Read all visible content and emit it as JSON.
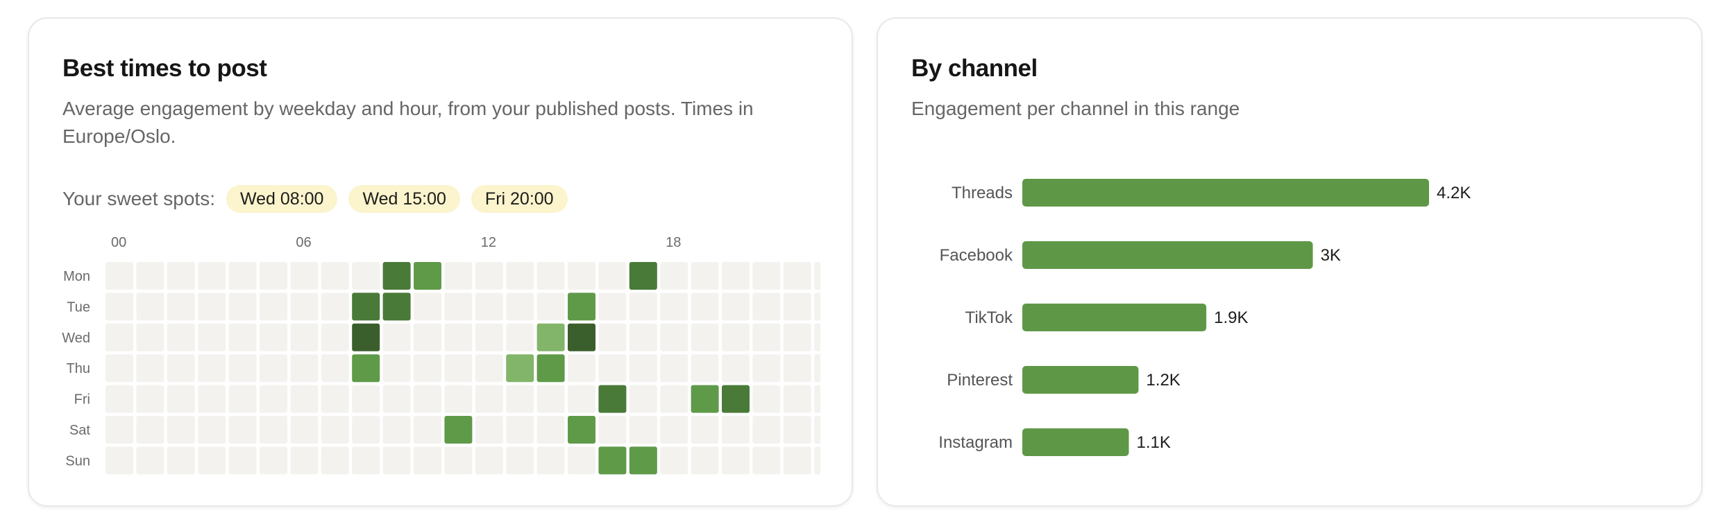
{
  "heatmap_card": {
    "title": "Best times to post",
    "subtitle": "Average engagement by weekday and hour, from your published posts. Times in Europe/Oslo.",
    "sweet_spots_label": "Your sweet spots:",
    "sweet_spots": [
      "Wed 08:00",
      "Wed 15:00",
      "Fri 20:00"
    ]
  },
  "channel_card": {
    "title": "By channel",
    "subtitle": "Engagement per channel in this range"
  },
  "colors": {
    "empty_cell": "#f3f2ef",
    "bar": "#5e9847",
    "chip_bg": "#fbf4cc"
  },
  "chart_data": [
    {
      "type": "heatmap",
      "days": [
        "Mon",
        "Tue",
        "Wed",
        "Thu",
        "Fri",
        "Sat",
        "Sun"
      ],
      "hours": [
        "00",
        "01",
        "02",
        "03",
        "04",
        "05",
        "06",
        "07",
        "08",
        "09",
        "10",
        "11",
        "12",
        "13",
        "14",
        "15",
        "16",
        "17",
        "18",
        "19",
        "20",
        "21",
        "22",
        "23"
      ],
      "x_tick_labels": [
        "00",
        "06",
        "12",
        "18"
      ],
      "cells": [
        {
          "day": "Mon",
          "hour": 9,
          "level": 3
        },
        {
          "day": "Mon",
          "hour": 10,
          "level": 2
        },
        {
          "day": "Mon",
          "hour": 17,
          "level": 3
        },
        {
          "day": "Tue",
          "hour": 8,
          "level": 3
        },
        {
          "day": "Tue",
          "hour": 9,
          "level": 3
        },
        {
          "day": "Tue",
          "hour": 15,
          "level": 2
        },
        {
          "day": "Wed",
          "hour": 8,
          "level": 4
        },
        {
          "day": "Wed",
          "hour": 14,
          "level": 1
        },
        {
          "day": "Wed",
          "hour": 15,
          "level": 4
        },
        {
          "day": "Thu",
          "hour": 8,
          "level": 2
        },
        {
          "day": "Thu",
          "hour": 13,
          "level": 1
        },
        {
          "day": "Thu",
          "hour": 14,
          "level": 2
        },
        {
          "day": "Fri",
          "hour": 16,
          "level": 3
        },
        {
          "day": "Fri",
          "hour": 19,
          "level": 2
        },
        {
          "day": "Fri",
          "hour": 20,
          "level": 3
        },
        {
          "day": "Sat",
          "hour": 11,
          "level": 2
        },
        {
          "day": "Sat",
          "hour": 15,
          "level": 2
        },
        {
          "day": "Sun",
          "hour": 16,
          "level": 2
        },
        {
          "day": "Sun",
          "hour": 17,
          "level": 2
        }
      ],
      "level_colors": [
        "#f3f2ef",
        "#82b56a",
        "#5f9a49",
        "#4a7a38",
        "#3b5e2d"
      ]
    },
    {
      "type": "bar",
      "orientation": "horizontal",
      "categories": [
        "Threads",
        "Facebook",
        "TikTok",
        "Pinterest",
        "Instagram"
      ],
      "values": [
        4200,
        3000,
        1900,
        1200,
        1100
      ],
      "labels": [
        "4.2K",
        "3K",
        "1.9K",
        "1.2K",
        "1.1K"
      ],
      "xlim": [
        0,
        4200
      ]
    }
  ]
}
